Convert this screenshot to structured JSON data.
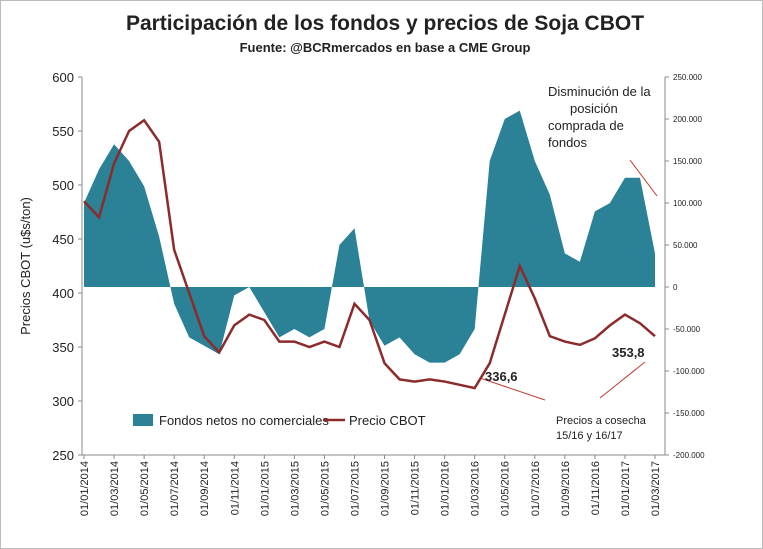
{
  "chart_data": {
    "type": "area-line",
    "title": "Participación de los fondos y precios de Soja CBOT",
    "subtitle": "Fuente: @BCRmercados  en base a CME Group",
    "y_label": "Precios CBOT (u$s/ton)",
    "categories": [
      "01/01/2014",
      null,
      "01/03/2014",
      null,
      "01/05/2014",
      null,
      "01/07/2014",
      null,
      "01/09/2014",
      null,
      "01/11/2014",
      null,
      "01/01/2015",
      null,
      "01/03/2015",
      null,
      "01/05/2015",
      null,
      "01/07/2015",
      null,
      "01/09/2015",
      null,
      "01/11/2015",
      null,
      "01/01/2016",
      null,
      "01/03/2016",
      null,
      "01/05/2016",
      null,
      "01/07/2016",
      null,
      "01/09/2016",
      null,
      "01/11/2016",
      null,
      "01/01/2017",
      null,
      "01/03/2017"
    ],
    "series": [
      {
        "name": "Fondos netos no comerciales",
        "color": "#2b8196",
        "axis": "y2",
        "values": [
          100000,
          140000,
          170000,
          150000,
          120000,
          60000,
          -20000,
          -60000,
          -70000,
          -80000,
          -10000,
          0,
          -30000,
          -60000,
          -50000,
          -60000,
          -50000,
          50000,
          70000,
          -40000,
          -70000,
          -60000,
          -80000,
          -90000,
          -90000,
          -80000,
          -50000,
          150000,
          200000,
          210000,
          150000,
          110000,
          40000,
          30000,
          90000,
          100000,
          130000,
          130000,
          40000
        ]
      },
      {
        "name": "Precio CBOT",
        "color": "#8c2b2b",
        "values": [
          485,
          470,
          520,
          550,
          560,
          540,
          440,
          400,
          360,
          345,
          370,
          380,
          375,
          355,
          355,
          350,
          355,
          350,
          390,
          375,
          335,
          320,
          318,
          320,
          318,
          315,
          312,
          335,
          380,
          425,
          395,
          360,
          355,
          352,
          358,
          370,
          380,
          372,
          360
        ]
      }
    ],
    "ylim": [
      250,
      600
    ],
    "yticks": [
      250,
      300,
      350,
      400,
      450,
      500,
      550,
      600
    ],
    "y2lim": [
      -200000,
      250000
    ],
    "y2ticks": [
      {
        "value": -200000,
        "label": "-200.000"
      },
      {
        "value": -150000,
        "label": "-150.000"
      },
      {
        "value": -100000,
        "label": "-100.000"
      },
      {
        "value": -50000,
        "label": "-50.000"
      },
      0,
      {
        "value": 50000,
        "label": "50.000"
      },
      {
        "value": 100000,
        "label": "100.000"
      },
      {
        "value": 150000,
        "label": "150.000"
      },
      {
        "value": 200000,
        "label": "200.000"
      },
      {
        "value": 250000,
        "label": "250.000"
      }
    ],
    "legend": "lower left",
    "annotations": [
      {
        "text": "Disminución de la posición comprada de fondos"
      },
      {
        "text": "336,6"
      },
      {
        "text": "353,8"
      },
      {
        "text": "Precios a cosecha 15/16 y 16/17"
      }
    ]
  }
}
